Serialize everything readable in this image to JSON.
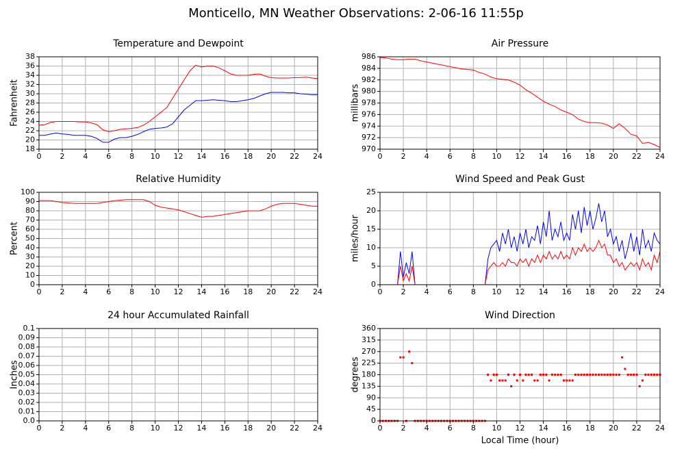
{
  "title": "Monticello, MN Weather Observations: 2-06-16 11:55p",
  "chart_data": [
    {
      "type": "line",
      "title": "Temperature and Dewpoint",
      "ylabel": "Fahrenheit",
      "grid": true,
      "xlim": [
        0,
        24
      ],
      "xticks": [
        0,
        2,
        4,
        6,
        8,
        10,
        12,
        14,
        16,
        18,
        20,
        22,
        24
      ],
      "ylim": [
        18,
        38
      ],
      "yticks": [
        18,
        20,
        22,
        24,
        26,
        28,
        30,
        32,
        34,
        36,
        38
      ],
      "x": [
        0,
        0.5,
        1,
        1.5,
        2,
        2.5,
        3,
        3.5,
        4,
        4.5,
        5,
        5.5,
        6,
        6.5,
        7,
        7.5,
        8,
        8.5,
        9,
        9.5,
        10,
        10.5,
        11,
        11.5,
        12,
        12.5,
        13,
        13.5,
        14,
        14.5,
        15,
        15.5,
        16,
        16.5,
        17,
        17.5,
        18,
        18.5,
        19,
        19.5,
        20,
        20.5,
        21,
        21.5,
        22,
        22.5,
        23,
        23.5,
        24
      ],
      "series": [
        {
          "color": "#ff0000",
          "values": [
            23.2,
            23.3,
            23.8,
            24.0,
            24.0,
            24.0,
            24.0,
            23.9,
            23.9,
            23.7,
            23.3,
            22.2,
            21.8,
            22.0,
            22.3,
            22.4,
            22.5,
            22.7,
            23.2,
            24.0,
            25.0,
            26.0,
            27.0,
            29.0,
            31.0,
            33.0,
            35.0,
            36.2,
            35.8,
            36.0,
            36.0,
            35.6,
            35.0,
            34.3,
            34.0,
            34.0,
            34.0,
            34.2,
            34.3,
            33.8,
            33.5,
            33.4,
            33.4,
            33.4,
            33.5,
            33.5,
            33.6,
            33.4,
            33.3
          ]
        },
        {
          "color": "#0000ff",
          "values": [
            21.0,
            21.0,
            21.3,
            21.5,
            21.3,
            21.2,
            21.0,
            21.0,
            21.0,
            20.8,
            20.3,
            19.5,
            19.5,
            20.2,
            20.5,
            20.5,
            20.8,
            21.2,
            21.8,
            22.3,
            22.5,
            22.6,
            22.8,
            23.5,
            25.0,
            26.5,
            27.5,
            28.5,
            28.5,
            28.6,
            28.7,
            28.6,
            28.5,
            28.3,
            28.3,
            28.5,
            28.7,
            29.0,
            29.5,
            30.0,
            30.3,
            30.3,
            30.3,
            30.2,
            30.2,
            30.0,
            29.9,
            29.8,
            29.8
          ]
        }
      ]
    },
    {
      "type": "line",
      "title": "Air Pressure",
      "ylabel": "millibars",
      "grid": true,
      "xlim": [
        0,
        24
      ],
      "xticks": [
        0,
        2,
        4,
        6,
        8,
        10,
        12,
        14,
        16,
        18,
        20,
        22,
        24
      ],
      "ylim": [
        970,
        986
      ],
      "yticks": [
        970,
        972,
        974,
        976,
        978,
        980,
        982,
        984,
        986
      ],
      "x": [
        0,
        0.5,
        1,
        1.5,
        2,
        2.5,
        3,
        3.5,
        4,
        4.5,
        5,
        5.5,
        6,
        6.5,
        7,
        7.5,
        8,
        8.5,
        9,
        9.5,
        10,
        10.5,
        11,
        11.5,
        12,
        12.5,
        13,
        13.5,
        14,
        14.5,
        15,
        15.5,
        16,
        16.5,
        17,
        17.5,
        18,
        18.5,
        19,
        19.5,
        20,
        20.5,
        21,
        21.5,
        22,
        22.5,
        23,
        23.5,
        24
      ],
      "series": [
        {
          "color": "#ff0000",
          "values": [
            985.9,
            985.8,
            985.6,
            985.5,
            985.5,
            985.6,
            985.6,
            985.3,
            985.1,
            984.9,
            984.7,
            984.5,
            984.3,
            984.1,
            983.9,
            983.8,
            983.7,
            983.3,
            983.0,
            982.5,
            982.2,
            982.1,
            982.0,
            981.6,
            981.1,
            980.3,
            979.7,
            979.0,
            978.3,
            977.8,
            977.4,
            976.8,
            976.4,
            976.0,
            975.2,
            974.8,
            974.6,
            974.6,
            974.5,
            974.2,
            973.6,
            974.4,
            973.6,
            972.6,
            972.3,
            971.0,
            971.2,
            970.8,
            970.3
          ]
        }
      ]
    },
    {
      "type": "line",
      "title": "Relative Humidity",
      "ylabel": "Percent",
      "grid": true,
      "xlim": [
        0,
        24
      ],
      "xticks": [
        0,
        2,
        4,
        6,
        8,
        10,
        12,
        14,
        16,
        18,
        20,
        22,
        24
      ],
      "ylim": [
        0,
        100
      ],
      "yticks": [
        0,
        10,
        20,
        30,
        40,
        50,
        60,
        70,
        80,
        90,
        100
      ],
      "x": [
        0,
        0.5,
        1,
        1.5,
        2,
        2.5,
        3,
        3.5,
        4,
        4.5,
        5,
        5.5,
        6,
        6.5,
        7,
        7.5,
        8,
        8.5,
        9,
        9.5,
        10,
        10.5,
        11,
        11.5,
        12,
        12.5,
        13,
        13.5,
        14,
        14.5,
        15,
        15.5,
        16,
        16.5,
        17,
        17.5,
        18,
        18.5,
        19,
        19.5,
        20,
        20.5,
        21,
        21.5,
        22,
        22.5,
        23,
        23.5,
        24
      ],
      "series": [
        {
          "color": "#ff0000",
          "values": [
            91,
            91,
            91,
            90,
            89,
            88.5,
            88,
            88,
            88,
            88,
            88,
            89,
            90,
            91,
            91.5,
            92,
            92,
            92,
            92,
            90,
            86,
            84,
            83,
            82,
            81,
            79,
            77,
            75,
            73,
            74,
            74,
            75,
            76,
            77,
            78,
            79,
            80,
            80,
            80,
            82,
            85,
            87,
            88,
            88,
            88,
            87,
            86,
            85,
            85
          ]
        }
      ]
    },
    {
      "type": "line",
      "title": "Wind Speed and Peak Gust",
      "ylabel": "miles/hour",
      "grid": true,
      "xlim": [
        0,
        24
      ],
      "xticks": [
        0,
        2,
        4,
        6,
        8,
        10,
        12,
        14,
        16,
        18,
        20,
        22,
        24
      ],
      "ylim": [
        0,
        25
      ],
      "yticks": [
        0,
        5,
        10,
        15,
        20,
        25
      ],
      "x": [
        0,
        0.25,
        0.5,
        0.75,
        1,
        1.25,
        1.5,
        1.75,
        2,
        2.25,
        2.5,
        2.75,
        3,
        3.25,
        3.5,
        3.75,
        4,
        4.25,
        4.5,
        4.75,
        5,
        5.25,
        5.5,
        5.75,
        6,
        6.25,
        6.5,
        6.75,
        7,
        7.25,
        7.5,
        7.75,
        8,
        8.25,
        8.5,
        8.75,
        9,
        9.25,
        9.5,
        9.75,
        10,
        10.25,
        10.5,
        10.75,
        11,
        11.25,
        11.5,
        11.75,
        12,
        12.25,
        12.5,
        12.75,
        13,
        13.25,
        13.5,
        13.75,
        14,
        14.25,
        14.5,
        14.75,
        15,
        15.25,
        15.5,
        15.75,
        16,
        16.25,
        16.5,
        16.75,
        17,
        17.25,
        17.5,
        17.75,
        18,
        18.25,
        18.5,
        18.75,
        19,
        19.25,
        19.5,
        19.75,
        20,
        20.25,
        20.5,
        20.75,
        21,
        21.25,
        21.5,
        21.75,
        22,
        22.25,
        22.5,
        22.75,
        23,
        23.25,
        23.5,
        23.75,
        24
      ],
      "series": [
        {
          "color": "#0000ff",
          "values": [
            0,
            0,
            0,
            0,
            0,
            0,
            0,
            9,
            2,
            6,
            3,
            9,
            0,
            0,
            0,
            0,
            0,
            0,
            0,
            0,
            0,
            0,
            0,
            0,
            0,
            0,
            0,
            0,
            0,
            0,
            0,
            0,
            0,
            0,
            0,
            0,
            0,
            7,
            10,
            11,
            12,
            9,
            14,
            11,
            15,
            10,
            13,
            9,
            14,
            11,
            15,
            10,
            13,
            12,
            16,
            11,
            17,
            13,
            20,
            12,
            15,
            13,
            17,
            12,
            14,
            12,
            19,
            15,
            20,
            14,
            21,
            16,
            20,
            15,
            18,
            22,
            17,
            20,
            13,
            15,
            11,
            13,
            9,
            12,
            7,
            10,
            14,
            9,
            13,
            8,
            15,
            10,
            12,
            9,
            14,
            12,
            11
          ]
        },
        {
          "color": "#ff0000",
          "values": [
            0,
            0,
            0,
            0,
            0,
            0,
            0,
            5,
            1,
            3,
            1,
            5,
            0,
            0,
            0,
            0,
            0,
            0,
            0,
            0,
            0,
            0,
            0,
            0,
            0,
            0,
            0,
            0,
            0,
            0,
            0,
            0,
            0,
            0,
            0,
            0,
            0,
            4,
            5,
            6,
            5,
            5,
            6,
            5,
            7,
            6,
            6,
            5,
            7,
            6,
            7,
            5,
            7,
            6,
            8,
            6,
            8,
            7,
            9,
            7,
            8,
            7,
            9,
            7,
            8,
            7,
            10,
            8,
            10,
            9,
            11,
            9,
            10,
            9,
            10,
            12,
            10,
            11,
            8,
            8,
            6,
            7,
            5,
            6,
            4,
            5,
            6,
            5,
            6,
            4,
            7,
            5,
            6,
            4,
            8,
            6,
            9
          ]
        }
      ]
    },
    {
      "type": "line",
      "title": "24 hour Accumulated Rainfall",
      "ylabel": "Inches",
      "grid": true,
      "xlim": [
        0,
        24
      ],
      "xticks": [
        0,
        2,
        4,
        6,
        8,
        10,
        12,
        14,
        16,
        18,
        20,
        22,
        24
      ],
      "ylim": [
        0,
        0.1
      ],
      "yticks": [
        {
          "value": 0,
          "label": "0.0"
        },
        0.01,
        0.02,
        0.03,
        0.04,
        0.05,
        0.06,
        0.07,
        0.08,
        0.09,
        0.1
      ],
      "x": [
        0,
        24
      ],
      "series": [
        {
          "color": "#ff0000",
          "values": [
            0,
            0
          ]
        }
      ]
    },
    {
      "type": "scatter",
      "title": "Wind Direction",
      "ylabel": "degrees",
      "xlabel": "Local Time (hour)",
      "grid": true,
      "xlim": [
        0,
        24
      ],
      "xticks": [
        0,
        2,
        4,
        6,
        8,
        10,
        12,
        14,
        16,
        18,
        20,
        22,
        24
      ],
      "ylim": [
        0,
        360
      ],
      "yticks": [
        0,
        45,
        90,
        135,
        180,
        225,
        270,
        315,
        360
      ],
      "x": [
        0,
        0.25,
        0.5,
        0.75,
        1,
        1.25,
        1.5,
        1.75,
        2,
        2.25,
        2.5,
        2.75,
        3,
        3.25,
        3.5,
        3.75,
        4,
        4.25,
        4.5,
        4.75,
        5,
        5.25,
        5.5,
        5.75,
        6,
        6.25,
        6.5,
        6.75,
        7,
        7.25,
        7.5,
        7.75,
        8,
        8.25,
        8.5,
        8.75,
        9,
        9.25,
        9.5,
        9.75,
        10,
        10.25,
        10.5,
        10.75,
        11,
        11.25,
        11.5,
        11.75,
        12,
        12.25,
        12.5,
        12.75,
        13,
        13.25,
        13.5,
        13.75,
        14,
        14.25,
        14.5,
        14.75,
        15,
        15.25,
        15.5,
        15.75,
        16,
        16.25,
        16.5,
        16.75,
        17,
        17.25,
        17.5,
        17.75,
        18,
        18.25,
        18.5,
        18.75,
        19,
        19.25,
        19.5,
        19.75,
        20,
        20.25,
        20.5,
        20.75,
        21,
        21.25,
        21.5,
        21.75,
        22,
        22.25,
        22.5,
        22.75,
        23,
        23.25,
        23.5,
        23.75,
        24
      ],
      "series": [
        {
          "color": "#ff0000",
          "values": [
            0,
            0,
            0,
            0,
            0,
            0,
            0,
            247.5,
            247.5,
            0,
            270,
            225,
            0,
            0,
            0,
            0,
            0,
            0,
            0,
            0,
            0,
            0,
            0,
            0,
            0,
            0,
            0,
            0,
            0,
            0,
            0,
            0,
            0,
            0,
            0,
            0,
            0,
            180,
            157.5,
            180,
            180,
            157.5,
            157.5,
            157.5,
            180,
            135,
            180,
            157.5,
            180,
            157.5,
            180,
            180,
            180,
            157.5,
            157.5,
            180,
            180,
            180,
            157.5,
            180,
            180,
            180,
            180,
            157.5,
            157.5,
            157.5,
            157.5,
            180,
            180,
            180,
            180,
            180,
            180,
            180,
            180,
            180,
            180,
            180,
            180,
            180,
            180,
            180,
            180,
            247.5,
            202.5,
            180,
            180,
            180,
            180,
            135,
            157.5,
            180,
            180,
            180,
            180,
            180,
            180
          ]
        }
      ]
    }
  ]
}
